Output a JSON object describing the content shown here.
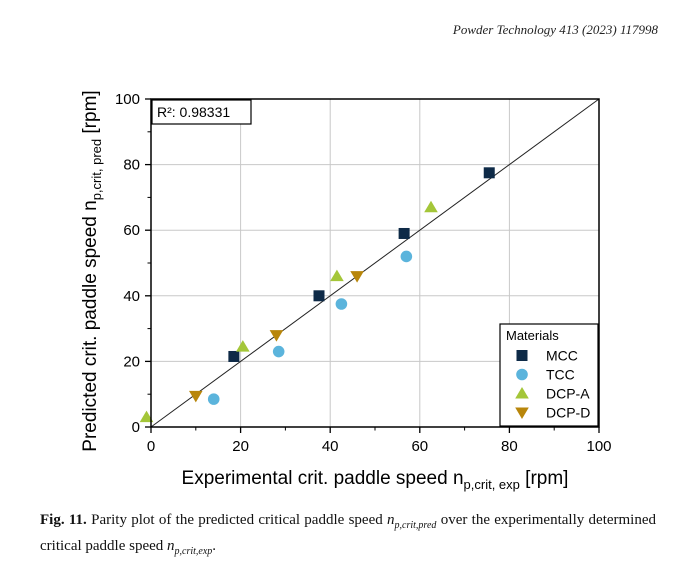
{
  "header": {
    "journal": "Powder Technology 413 (2023) 117998"
  },
  "chart_data": {
    "type": "scatter",
    "xlabel_main": "Experimental crit. paddle speed n",
    "xlabel_sub": "p,crit, exp",
    "xlabel_unit": " [rpm]",
    "ylabel_main": "Predicted crit. paddle speed n",
    "ylabel_sub": "p,crit, pred",
    "ylabel_unit": " [rpm]",
    "xlim": [
      0,
      100
    ],
    "ylim": [
      0,
      100
    ],
    "xticks": [
      "0",
      "20",
      "40",
      "60",
      "80",
      "100"
    ],
    "yticks": [
      "0",
      "20",
      "40",
      "60",
      "80",
      "100"
    ],
    "grid": true,
    "parity_line": true,
    "annotation": "R²: 0.98331",
    "legend_title": "Materials",
    "legend_position": "bottom-right",
    "series": [
      {
        "name": "MCC",
        "marker": "square",
        "color": "#0e2a47",
        "points": [
          [
            18.5,
            21.5
          ],
          [
            37.5,
            40
          ],
          [
            56.5,
            59
          ],
          [
            75.5,
            77.5
          ]
        ]
      },
      {
        "name": "TCC",
        "marker": "circle",
        "color": "#5bb4dc",
        "points": [
          [
            14,
            8.5
          ],
          [
            28.5,
            23
          ],
          [
            42.5,
            37.5
          ],
          [
            57,
            52
          ]
        ]
      },
      {
        "name": "DCP-A",
        "marker": "triangle-up",
        "color": "#a4c639",
        "points": [
          [
            -1,
            3
          ],
          [
            20.5,
            24.5
          ],
          [
            41.5,
            46
          ],
          [
            62.5,
            67
          ]
        ]
      },
      {
        "name": "DCP-D",
        "marker": "triangle-down",
        "color": "#b8860b",
        "points": [
          [
            10,
            9.5
          ],
          [
            28,
            28
          ],
          [
            46,
            46
          ]
        ]
      }
    ]
  },
  "caption": {
    "label": "Fig. 11.",
    "text_1": " Parity plot of the predicted critical paddle speed ",
    "math_1": "n",
    "math_1_sub": "p,crit,pred",
    "text_2": " over the experimentally determined critical paddle speed ",
    "math_2": "n",
    "math_2_sub": "p,crit,exp",
    "text_3": "."
  }
}
